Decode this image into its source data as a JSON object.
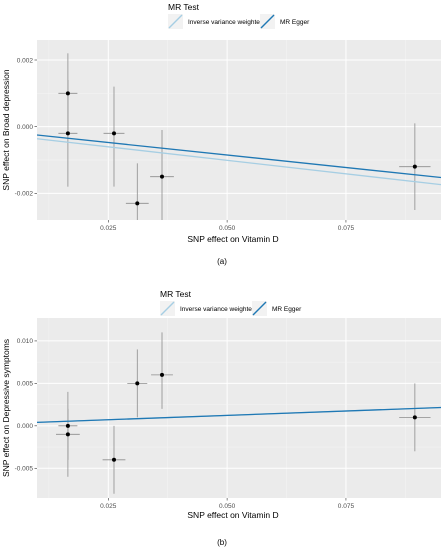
{
  "colors": {
    "panel_bg": "#ebebeb",
    "grid_major": "#ffffff",
    "ivw_line": "#a6cee3",
    "egger_line": "#1f78b4",
    "point": "#000000",
    "errorbar": "#8c8c8c"
  },
  "chart_data": [
    {
      "type": "scatter",
      "panel_label": "(a)",
      "legend_title": "MR Test",
      "legend_position": "top",
      "xlabel": "SNP effect on Vitamin D",
      "ylabel": "SNP effect on Broad depression",
      "xlim": [
        0.01,
        0.095
      ],
      "ylim": [
        -0.0028,
        0.0026
      ],
      "x_ticks": [
        0.025,
        0.05,
        0.075
      ],
      "x_tick_labels": [
        "0.025",
        "0.050",
        "0.075"
      ],
      "y_ticks": [
        0.002,
        0.0,
        -0.002
      ],
      "y_tick_labels": [
        "0.002",
        "0.000",
        "-0.002"
      ],
      "grid": true,
      "points": [
        {
          "x": 0.0165,
          "y": 0.001,
          "x_low": 0.0145,
          "x_high": 0.0185,
          "y_low": -0.0001,
          "y_high": 0.0022
        },
        {
          "x": 0.0165,
          "y": -0.0002,
          "x_low": 0.0145,
          "x_high": 0.0185,
          "y_low": -0.0018,
          "y_high": 0.0014
        },
        {
          "x": 0.0262,
          "y": -0.0002,
          "x_low": 0.024,
          "x_high": 0.0284,
          "y_low": -0.0018,
          "y_high": 0.0012
        },
        {
          "x": 0.0311,
          "y": -0.0023,
          "x_low": 0.0287,
          "x_high": 0.0335,
          "y_low": -0.0035,
          "y_high": -0.0011
        },
        {
          "x": 0.0363,
          "y": -0.0015,
          "x_low": 0.0338,
          "x_high": 0.0388,
          "y_low": -0.0029,
          "y_high": -0.0001
        },
        {
          "x": 0.0895,
          "y": -0.0012,
          "x_low": 0.0862,
          "x_high": 0.0928,
          "y_low": -0.0025,
          "y_high": 0.0001
        }
      ],
      "series": [
        {
          "name": "Inverse variance weighted",
          "slope": -0.0162,
          "intercept": -0.0002
        },
        {
          "name": "MR Egger",
          "slope": -0.015,
          "intercept": -0.0001
        }
      ]
    },
    {
      "type": "scatter",
      "panel_label": "(b)",
      "legend_title": "MR Test",
      "legend_position": "top",
      "xlabel": "SNP effect on Vitamin D",
      "ylabel": "SNP effect on Depressive symptoms",
      "xlim": [
        0.01,
        0.095
      ],
      "ylim": [
        -0.0085,
        0.0127
      ],
      "x_ticks": [
        0.025,
        0.05,
        0.075
      ],
      "x_tick_labels": [
        "0.025",
        "0.050",
        "0.075"
      ],
      "y_ticks": [
        0.01,
        0.005,
        0.0,
        -0.005
      ],
      "y_tick_labels": [
        "0.010",
        "0.005",
        "0.000",
        "-0.005"
      ],
      "grid": true,
      "points": [
        {
          "x": 0.0165,
          "y": 0.0,
          "x_low": 0.0145,
          "x_high": 0.0185,
          "y_low": -0.004,
          "y_high": 0.004
        },
        {
          "x": 0.0165,
          "y": -0.001,
          "x_low": 0.014,
          "x_high": 0.019,
          "y_low": -0.006,
          "y_high": 0.002
        },
        {
          "x": 0.0262,
          "y": -0.004,
          "x_low": 0.0238,
          "x_high": 0.0286,
          "y_low": -0.008,
          "y_high": 0.0
        },
        {
          "x": 0.0311,
          "y": 0.005,
          "x_low": 0.029,
          "x_high": 0.0332,
          "y_low": 0.001,
          "y_high": 0.009
        },
        {
          "x": 0.0363,
          "y": 0.006,
          "x_low": 0.034,
          "x_high": 0.0386,
          "y_low": 0.002,
          "y_high": 0.011
        },
        {
          "x": 0.0895,
          "y": 0.001,
          "x_low": 0.0862,
          "x_high": 0.0928,
          "y_low": -0.003,
          "y_high": 0.005
        }
      ],
      "series": [
        {
          "name": "Inverse variance weighted",
          "slope": 0.0206,
          "intercept": 0.0002
        },
        {
          "name": "MR Egger",
          "slope": 0.0206,
          "intercept": 0.0002
        }
      ]
    }
  ]
}
